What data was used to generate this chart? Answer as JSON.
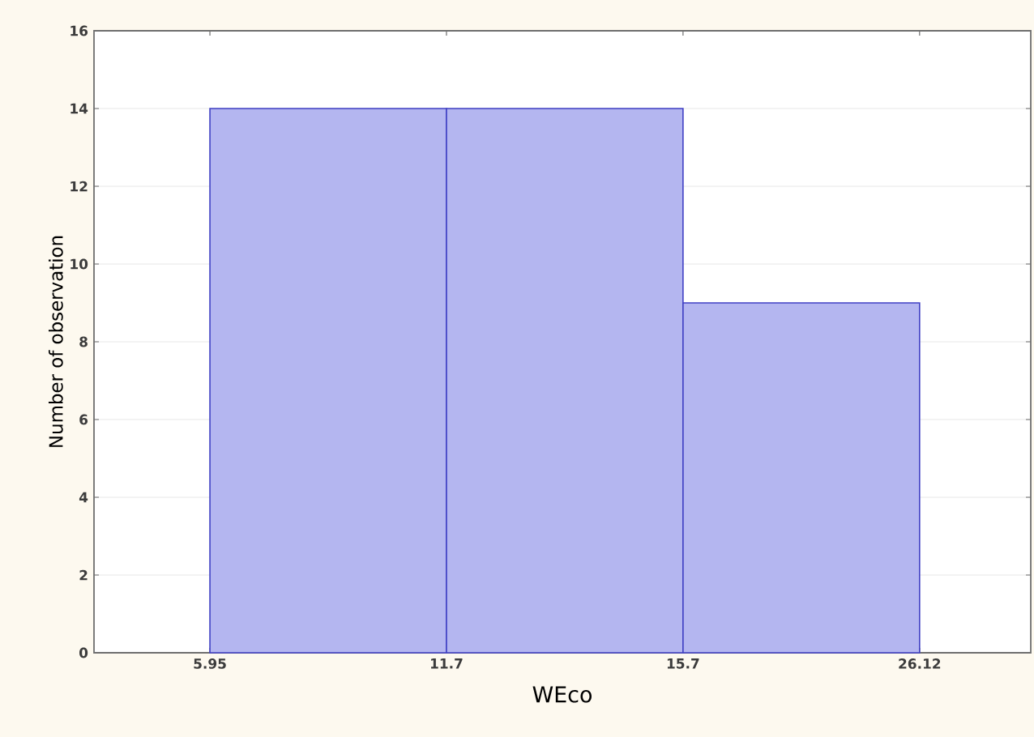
{
  "chart_data": {
    "type": "bar",
    "xlabel": "WEco",
    "ylabel": "Number of observation",
    "categories": [
      "5.95",
      null,
      "11.7",
      null,
      "15.7",
      null,
      "26.12"
    ],
    "values": [
      null,
      14,
      null,
      14,
      null,
      9,
      null
    ],
    "color": "#b4b6f0",
    "ylim": [
      0,
      16
    ],
    "yticks": [
      0,
      2,
      4,
      6,
      8,
      10,
      12,
      14,
      16
    ],
    "grid": "y"
  }
}
